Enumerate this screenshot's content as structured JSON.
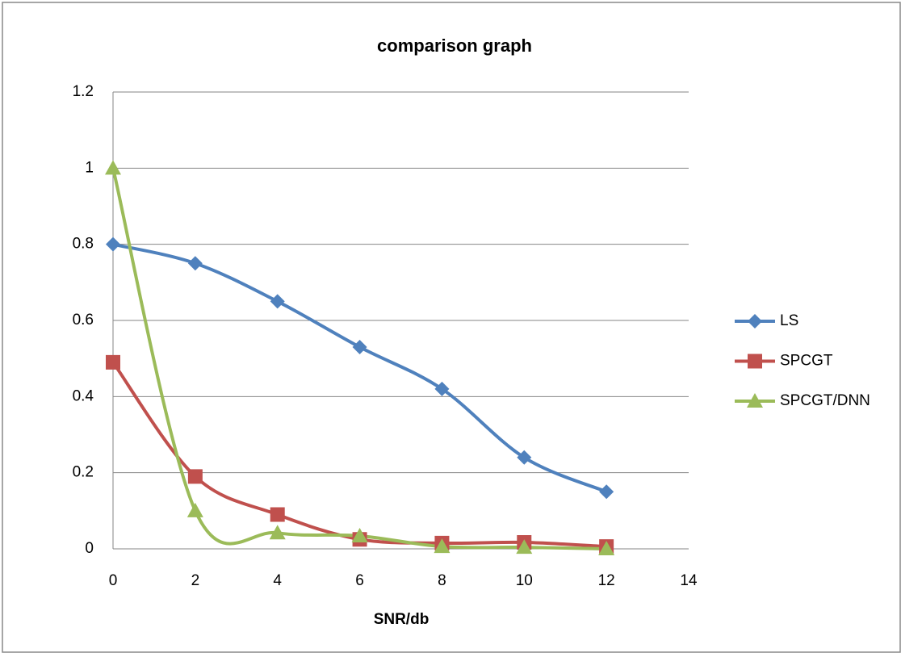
{
  "chart_data": {
    "type": "line",
    "title": "comparison graph",
    "x_label": "SNR/db",
    "x": [
      0,
      2,
      4,
      6,
      8,
      10,
      12
    ],
    "series": [
      {
        "name": "LS",
        "color": "#4f81bd",
        "marker": "diamond",
        "values": [
          0.8,
          0.75,
          0.65,
          0.53,
          0.42,
          0.24,
          0.15
        ]
      },
      {
        "name": "SPCGT",
        "color": "#c0504d",
        "marker": "square",
        "values": [
          0.49,
          0.19,
          0.09,
          0.025,
          0.015,
          0.017,
          0.006
        ]
      },
      {
        "name": "SPCGT/DNN",
        "color": "#9bbb59",
        "marker": "triangle",
        "values": [
          1.0,
          0.1,
          0.042,
          0.034,
          0.006,
          0.004,
          0
        ]
      }
    ],
    "xlim": [
      0,
      14
    ],
    "xticks": [
      0,
      2,
      4,
      6,
      8,
      10,
      12,
      14
    ],
    "ylim": [
      0,
      1.2
    ],
    "yticks": [
      0,
      0.2,
      0.4,
      0.6,
      0.8,
      1,
      1.2
    ],
    "grid": true,
    "smooth": true,
    "legend_position": "right"
  }
}
